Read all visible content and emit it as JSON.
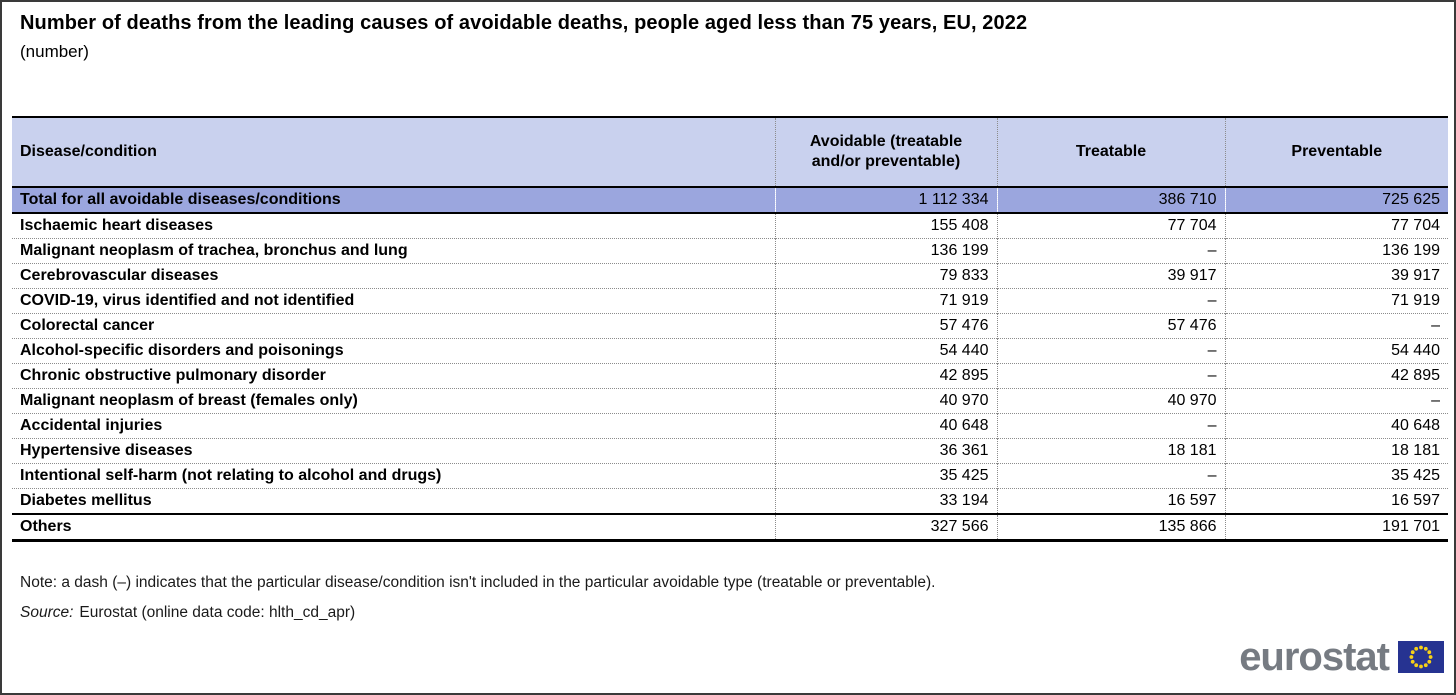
{
  "page": {
    "title": "Number of deaths from the leading causes of avoidable deaths, people aged less than 75 years, EU, 2022",
    "subtitle": "(number)",
    "note": "Note: a dash (–) indicates that the particular disease/condition isn't included in the particular avoidable type (treatable or preventable).",
    "source_label": "Source:",
    "source_text": "Eurostat (online data code: hlth_cd_apr)",
    "logo_text": "eurostat"
  },
  "chart_data": {
    "type": "table",
    "title": "Number of deaths from the leading causes of avoidable deaths, people aged less than 75 years, EU, 2022",
    "unit": "number",
    "columns": [
      "Disease/condition",
      "Avoidable (treatable and/or preventable)",
      "Treatable",
      "Preventable"
    ],
    "rows": [
      {
        "label": "Total for all avoidable diseases/conditions",
        "avoidable": "1 112 334",
        "treatable": "386 710",
        "preventable": "725 625",
        "emphasis": "total"
      },
      {
        "label": "Ischaemic heart diseases",
        "avoidable": "155 408",
        "treatable": "77 704",
        "preventable": "77 704",
        "emphasis": "first"
      },
      {
        "label": "Malignant neoplasm of trachea, bronchus and lung",
        "avoidable": "136 199",
        "treatable": "–",
        "preventable": "136 199"
      },
      {
        "label": "Cerebrovascular diseases",
        "avoidable": "79 833",
        "treatable": "39 917",
        "preventable": "39 917"
      },
      {
        "label": "COVID-19, virus identified and not identified",
        "avoidable": "71 919",
        "treatable": "–",
        "preventable": "71 919"
      },
      {
        "label": "Colorectal cancer",
        "avoidable": "57 476",
        "treatable": "57 476",
        "preventable": "–"
      },
      {
        "label": "Alcohol-specific disorders and poisonings",
        "avoidable": "54 440",
        "treatable": "–",
        "preventable": "54 440"
      },
      {
        "label": "Chronic obstructive pulmonary disorder",
        "avoidable": "42 895",
        "treatable": "–",
        "preventable": "42 895"
      },
      {
        "label": "Malignant neoplasm of breast (females only)",
        "avoidable": "40 970",
        "treatable": "40 970",
        "preventable": "–"
      },
      {
        "label": "Accidental injuries",
        "avoidable": "40 648",
        "treatable": "–",
        "preventable": "40 648"
      },
      {
        "label": "Hypertensive diseases",
        "avoidable": "36 361",
        "treatable": "18 181",
        "preventable": "18 181"
      },
      {
        "label": "Intentional self-harm (not relating to alcohol and drugs)",
        "avoidable": "35 425",
        "treatable": "–",
        "preventable": "35 425"
      },
      {
        "label": "Diabetes mellitus",
        "avoidable": "33 194",
        "treatable": "16 597",
        "preventable": "16 597"
      },
      {
        "label": "Others",
        "avoidable": "327 566",
        "treatable": "135 866",
        "preventable": "191 701",
        "emphasis": "others"
      }
    ]
  },
  "colors": {
    "header_bg": "#c9d1ee",
    "total_row_bg": "#9ba6de",
    "logo_gray": "#767b82",
    "flag_blue": "#263391",
    "star_yellow": "#f7d117"
  }
}
